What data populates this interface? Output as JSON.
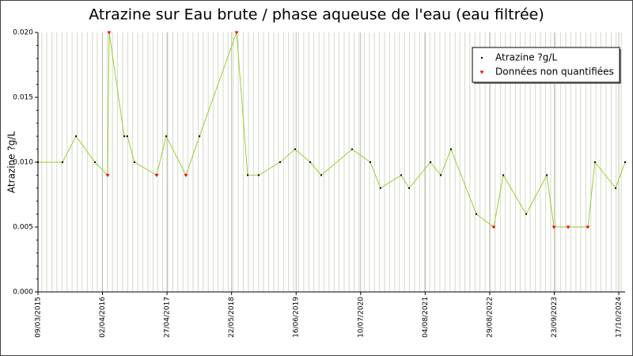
{
  "chart_data": {
    "type": "line",
    "title": "Atrazine sur Eau brute / phase aqueuse de l'eau (eau filtrée)",
    "y_label": "Atrazine ?g/L",
    "x": [
      "2015-03-09",
      "2015-08-04",
      "2015-10-25",
      "2016-02-16",
      "2016-05-03",
      "2016-05-12",
      "2016-08-11",
      "2016-08-30",
      "2016-10-12",
      "2017-02-23",
      "2017-04-22",
      "2017-08-19",
      "2017-11-09",
      "2018-06-21",
      "2018-08-27",
      "2018-11-02",
      "2019-03-11",
      "2019-06-10",
      "2019-09-09",
      "2019-11-15",
      "2020-05-19",
      "2020-09-06",
      "2020-11-07",
      "2021-03-12",
      "2021-04-29",
      "2021-09-05",
      "2021-11-06",
      "2022-01-07",
      "2022-06-09",
      "2022-09-22",
      "2022-11-19",
      "2023-04-06",
      "2023-08-09",
      "2023-09-21",
      "2023-12-16",
      "2024-04-13",
      "2024-05-26",
      "2024-09-28",
      "2024-11-24"
    ],
    "series": [
      {
        "name": "Atrazine ?g/L",
        "color": "#9acd32",
        "marker_color": "#000000",
        "line": true,
        "values": [
          0.01,
          0.01,
          0.012,
          0.01,
          0.009,
          0.02,
          0.012,
          0.012,
          0.01,
          0.009,
          0.012,
          0.009,
          0.012,
          0.02,
          0.009,
          0.009,
          0.01,
          0.011,
          0.01,
          0.009,
          0.011,
          0.01,
          0.008,
          0.009,
          0.008,
          0.01,
          0.009,
          0.011,
          0.006,
          0.005,
          0.009,
          0.006,
          0.009,
          0.005,
          0.005,
          0.005,
          0.01,
          0.008,
          0.01
        ]
      },
      {
        "name": "Données non quantifiées",
        "color": "#ff0000",
        "marker_color": "#ff0000",
        "line": false,
        "values": [
          null,
          null,
          null,
          null,
          0.009,
          0.02,
          null,
          null,
          null,
          0.009,
          null,
          0.009,
          null,
          0.02,
          null,
          null,
          null,
          null,
          null,
          null,
          null,
          null,
          null,
          null,
          null,
          null,
          null,
          null,
          null,
          0.005,
          null,
          null,
          null,
          0.005,
          0.005,
          0.005,
          null,
          null,
          null
        ]
      }
    ],
    "xlim": [
      "2015-03-09",
      "2024-11-24"
    ],
    "xticks": [
      {
        "value": "2015-03-09",
        "label": "09/03/2015"
      },
      {
        "value": "2016-04-02",
        "label": "02/04/2016"
      },
      {
        "value": "2017-04-27",
        "label": "27/04/2017"
      },
      {
        "value": "2018-05-22",
        "label": "22/05/2018"
      },
      {
        "value": "2019-06-16",
        "label": "16/06/2019"
      },
      {
        "value": "2020-07-10",
        "label": "10/07/2020"
      },
      {
        "value": "2021-08-04",
        "label": "04/08/2021"
      },
      {
        "value": "2022-08-29",
        "label": "29/08/2022"
      },
      {
        "value": "2023-09-23",
        "label": "23/09/2023"
      },
      {
        "value": "2024-10-17",
        "label": "17/10/2024"
      }
    ],
    "ylim": [
      0,
      0.02
    ],
    "yticks": [
      {
        "value": 0,
        "label": "0.000"
      },
      {
        "value": 0.005,
        "label": "0.005"
      },
      {
        "value": 0.01,
        "label": "0.010"
      },
      {
        "value": 0.015,
        "label": "0.015"
      },
      {
        "value": 0.02,
        "label": "0.020"
      }
    ],
    "grid": true,
    "legend": "upper right"
  }
}
